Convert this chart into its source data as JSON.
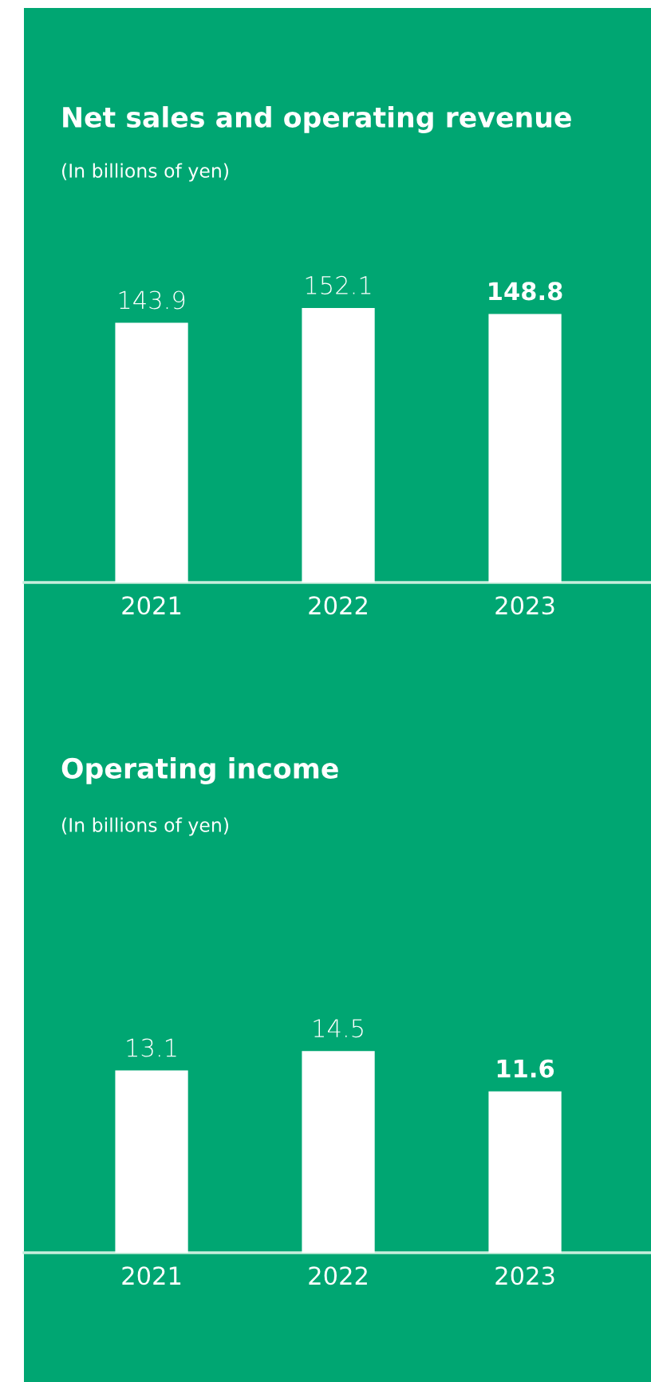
{
  "chart_data": [
    {
      "type": "bar",
      "title": "Net sales and operating revenue",
      "subtitle": "(In billions of yen)",
      "categories": [
        "2021",
        "2022",
        "2023"
      ],
      "values": [
        143.9,
        152.1,
        148.8
      ],
      "color": "#ffffff",
      "data_labels": true
    },
    {
      "type": "bar",
      "title": "Operating income",
      "subtitle": "(In billions of yen)",
      "categories": [
        "2021",
        "2022",
        "2023"
      ],
      "values": [
        13.1,
        14.5,
        11.6
      ],
      "color": "#ffffff",
      "data_labels": true
    }
  ]
}
